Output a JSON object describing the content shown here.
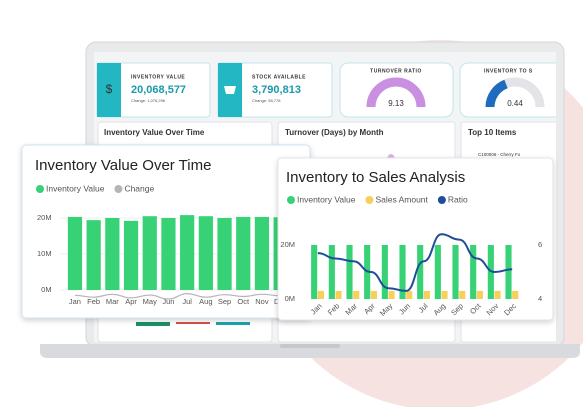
{
  "kpis": [
    {
      "label": "INVENTORY VALUE",
      "value": "20,068,577",
      "change": "Change: 1,076,296"
    },
    {
      "label": "STOCK AVAILABLE",
      "value": "3,790,813",
      "change": "Change: 58,778"
    }
  ],
  "gauges": [
    {
      "label": "TURNOVER RATIO",
      "value": "9.13"
    },
    {
      "label": "INVENTORY TO S",
      "value": "0.44"
    }
  ],
  "panels": [
    "Inventory Value Over Time",
    "Turnover (Days) by Month",
    "Top 10 Items"
  ],
  "top_item": "C100006 - Cherry Fo",
  "chart_data": [
    {
      "type": "bar",
      "title": "Inventory Value Over Time",
      "categories": [
        "Jan",
        "Feb",
        "Mar",
        "Apr",
        "May",
        "Jun",
        "Jul",
        "Aug",
        "Sep",
        "Oct",
        "Nov",
        "Dec"
      ],
      "series": [
        {
          "name": "Inventory Value",
          "type": "bar",
          "color": "#37d176",
          "values": [
            20.3,
            19.4,
            20,
            19.2,
            20.5,
            20,
            20.8,
            20.5,
            20,
            20.3,
            20.3,
            20.2
          ]
        },
        {
          "name": "Change",
          "type": "line",
          "color": "#b5b5b5",
          "values": [
            -1.5,
            -2,
            -1.2,
            -2.2,
            -1.4,
            -2.5,
            -1,
            -2,
            -1.3,
            -1.8,
            -1.2,
            -1.6
          ]
        }
      ],
      "ylim": [
        -3,
        25
      ],
      "yticks": [
        {
          "value": 0,
          "label": "0M"
        },
        {
          "value": 10,
          "label": "10M"
        },
        {
          "value": 20,
          "label": "20M"
        }
      ],
      "grid": true
    },
    {
      "type": "bar",
      "title": "Inventory to Sales Analysis",
      "categories": [
        "Jan",
        "Feb",
        "Mar",
        "Apr",
        "May",
        "Jun",
        "Jul",
        "Aug",
        "Sep",
        "Oct",
        "Nov",
        "Dec"
      ],
      "series": [
        {
          "name": "Inventory Value",
          "type": "bar",
          "color": "#37d176",
          "values": [
            20,
            20,
            20,
            20,
            20,
            20,
            20,
            20,
            20,
            20,
            20,
            20
          ]
        },
        {
          "name": "Sales Amount",
          "type": "bar",
          "color": "#f7cf5a",
          "values": [
            3,
            3,
            3,
            3,
            3,
            3,
            3,
            3,
            3,
            3,
            3,
            3
          ]
        },
        {
          "name": "Ratio",
          "type": "line",
          "axis": "y2",
          "color": "#1f4e96",
          "values": [
            5.7,
            5.5,
            5.4,
            5.0,
            4.4,
            4.3,
            5.4,
            6.4,
            6.2,
            5.5,
            5.0,
            5.1
          ]
        }
      ],
      "ylim": [
        0,
        33
      ],
      "yticks": [
        {
          "value": 0,
          "label": "0M"
        },
        {
          "value": 20,
          "label": "20M"
        }
      ],
      "y2lim": [
        4,
        7.3
      ],
      "y2ticks": [
        4,
        6
      ],
      "grid": false
    }
  ]
}
